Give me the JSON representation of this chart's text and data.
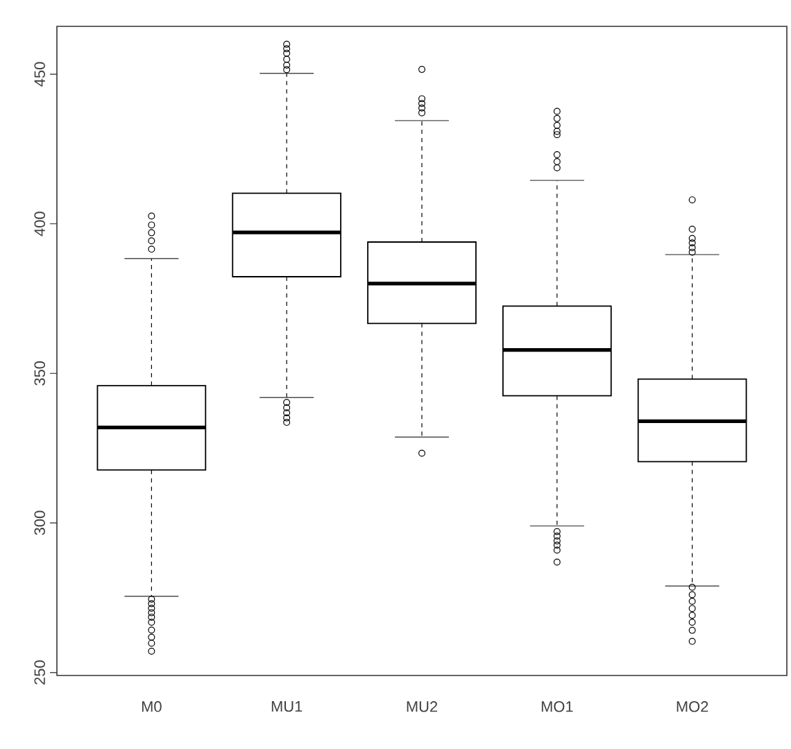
{
  "chart_data": {
    "type": "box",
    "categories": [
      "M0",
      "MU1",
      "MU2",
      "MO1",
      "MO2"
    ],
    "boxes": [
      {
        "low": 275.5,
        "q1": 317.7,
        "median": 331.9,
        "q3": 345.9,
        "high": 388.4,
        "outliers": [
          391.5,
          394.3,
          397,
          399.6,
          402.6,
          274.5,
          273,
          271.5,
          270,
          268.5,
          266.8,
          264.2,
          261.8,
          259.8,
          257.1
        ]
      },
      {
        "low": 341.9,
        "q1": 382.3,
        "median": 397.1,
        "q3": 410.2,
        "high": 450.3,
        "outliers": [
          451.5,
          453,
          455,
          457,
          458.5,
          460,
          340.3,
          338.5,
          336.8,
          335.1,
          333.6
        ]
      },
      {
        "low": 328.7,
        "q1": 366.7,
        "median": 380.0,
        "q3": 393.9,
        "high": 434.5,
        "outliers": [
          437.1,
          438.7,
          440.2,
          441.8,
          451.6,
          323.3
        ]
      },
      {
        "low": 299.0,
        "q1": 342.5,
        "median": 357.8,
        "q3": 372.5,
        "high": 414.5,
        "outliers": [
          418.7,
          420.8,
          423.1,
          429.8,
          430.9,
          432.9,
          435.2,
          437.6,
          297.1,
          295.6,
          294,
          292.6,
          290.9,
          286.9
        ]
      },
      {
        "low": 278.9,
        "q1": 320.5,
        "median": 334.0,
        "q3": 348.1,
        "high": 389.7,
        "outliers": [
          390.5,
          392.0,
          393.6,
          395.1,
          398.2,
          408,
          278.5,
          276,
          273.8,
          271.4,
          269.1,
          266.8,
          264.1,
          260.4
        ]
      }
    ],
    "ylim": [
      249,
      466
    ],
    "yticks": [
      250,
      300,
      350,
      400,
      450
    ]
  }
}
